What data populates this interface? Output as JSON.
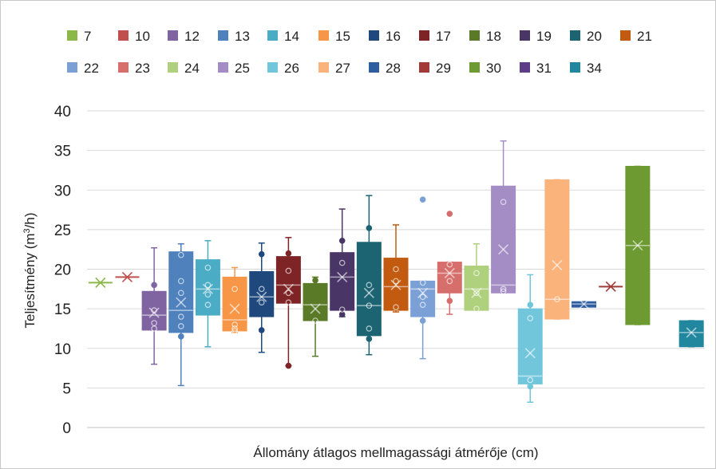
{
  "chart_data": {
    "type": "box",
    "xlabel": "Állomány átlagos mellmagassági átmérője (cm)",
    "ylabel": "Teljesítmény (m³/h)",
    "ylim": [
      0,
      40
    ],
    "yticks": [
      0,
      5,
      10,
      15,
      20,
      25,
      30,
      35,
      40
    ],
    "grid": true,
    "legend_position": "top",
    "series": [
      {
        "name": "7",
        "color": "#8cb84a",
        "min": 18.3,
        "q1": 18.3,
        "median": 18.3,
        "q3": 18.3,
        "max": 18.3,
        "mean": 18.3,
        "points": []
      },
      {
        "name": "10",
        "color": "#c0504d",
        "min": 19.0,
        "q1": 19.0,
        "median": 19.0,
        "q3": 19.0,
        "max": 19.0,
        "mean": 19.0,
        "points": []
      },
      {
        "name": "12",
        "color": "#8064a2",
        "min": 8.0,
        "q1": 12.3,
        "median": 14.2,
        "q3": 17.2,
        "max": 22.7,
        "mean": 14.5,
        "points": [
          18.0,
          12.5,
          13.2,
          14.8
        ]
      },
      {
        "name": "13",
        "color": "#4f81bd",
        "min": 5.3,
        "q1": 12.0,
        "median": 14.8,
        "q3": 22.2,
        "max": 23.2,
        "mean": 15.8,
        "points": [
          11.5,
          14.0,
          17.0,
          18.5,
          21.8,
          12.8
        ]
      },
      {
        "name": "14",
        "color": "#4bacc6",
        "min": 10.2,
        "q1": 14.2,
        "median": 17.5,
        "q3": 21.2,
        "max": 23.6,
        "mean": 17.5,
        "points": [
          15.5,
          18.0,
          20.2,
          16.8
        ]
      },
      {
        "name": "15",
        "color": "#f79646",
        "min": 12.0,
        "q1": 12.2,
        "median": 13.6,
        "q3": 19.0,
        "max": 20.2,
        "mean": 15.0,
        "points": [
          12.5,
          17.5,
          13.0,
          12.2
        ]
      },
      {
        "name": "16",
        "color": "#1f497d",
        "min": 9.5,
        "q1": 14.0,
        "median": 16.5,
        "q3": 19.7,
        "max": 23.3,
        "mean": 16.5,
        "points": [
          12.3,
          21.9,
          17.5,
          15.8
        ]
      },
      {
        "name": "17",
        "color": "#7f2426",
        "min": 7.8,
        "q1": 15.7,
        "median": 18.0,
        "q3": 21.6,
        "max": 24.0,
        "mean": 17.5,
        "points": [
          7.8,
          22.0,
          17.0,
          19.8,
          15.8
        ]
      },
      {
        "name": "18",
        "color": "#5a7a28",
        "min": 9.0,
        "q1": 13.5,
        "median": 15.5,
        "q3": 18.2,
        "max": 19.0,
        "mean": 15.0,
        "points": [
          18.6,
          13.5
        ]
      },
      {
        "name": "19",
        "color": "#4a3666",
        "min": 14.0,
        "q1": 14.8,
        "median": 19.0,
        "q3": 22.1,
        "max": 27.6,
        "mean": 19.0,
        "points": [
          23.6,
          20.8,
          14.3,
          14.9
        ]
      },
      {
        "name": "20",
        "color": "#1d6473",
        "min": 9.2,
        "q1": 11.6,
        "median": 15.4,
        "q3": 23.4,
        "max": 29.3,
        "mean": 17.0,
        "points": [
          25.2,
          11.2,
          18.0,
          15.4,
          12.5
        ]
      },
      {
        "name": "21",
        "color": "#c25a0f",
        "min": 14.6,
        "q1": 14.8,
        "median": 17.8,
        "q3": 21.4,
        "max": 25.6,
        "mean": 18.0,
        "points": [
          20.0,
          18.5,
          15.2
        ]
      },
      {
        "name": "22",
        "color": "#7ba0d6",
        "min": 8.7,
        "q1": 14.0,
        "median": 17.5,
        "q3": 18.5,
        "max": 18.5,
        "mean": 17.0,
        "points": [
          28.8,
          18.3,
          15.5,
          13.5,
          16.5
        ]
      },
      {
        "name": "23",
        "color": "#d66e6c",
        "min": 14.3,
        "q1": 17.0,
        "median": 19.5,
        "q3": 20.9,
        "max": 20.9,
        "mean": 19.5,
        "points": [
          27.0,
          20.6,
          18.5,
          16.0
        ]
      },
      {
        "name": "24",
        "color": "#afd07d",
        "min": 14.8,
        "q1": 14.8,
        "median": 17.5,
        "q3": 20.4,
        "max": 23.2,
        "mean": 17.0,
        "points": [
          19.5,
          15.0,
          17.0
        ]
      },
      {
        "name": "25",
        "color": "#a48cc4",
        "min": 17.0,
        "q1": 17.0,
        "median": 18.0,
        "q3": 30.5,
        "max": 36.2,
        "mean": 22.5,
        "points": [
          28.5,
          17.5,
          17.2
        ]
      },
      {
        "name": "26",
        "color": "#72c6db",
        "min": 3.2,
        "q1": 5.5,
        "median": 6.5,
        "q3": 15.0,
        "max": 19.3,
        "mean": 9.4,
        "points": [
          15.5,
          13.8,
          6.0,
          5.2
        ]
      },
      {
        "name": "27",
        "color": "#f9b37b",
        "min": 13.7,
        "q1": 13.7,
        "median": 16.2,
        "q3": 31.3,
        "max": 31.3,
        "mean": 20.5,
        "points": [
          16.2
        ]
      },
      {
        "name": "28",
        "color": "#2e5ea0",
        "min": 15.2,
        "q1": 15.2,
        "median": 15.6,
        "q3": 15.9,
        "max": 15.9,
        "mean": 15.6,
        "points": []
      },
      {
        "name": "29",
        "color": "#a23a38",
        "min": 17.8,
        "q1": 17.8,
        "median": 17.8,
        "q3": 17.8,
        "max": 17.8,
        "mean": 17.8,
        "points": []
      },
      {
        "name": "30",
        "color": "#6d9a31",
        "min": 13.0,
        "q1": 13.0,
        "median": 23.0,
        "q3": 33.0,
        "max": 33.0,
        "mean": 23.0,
        "points": []
      },
      {
        "name": "31",
        "color": "#5e3d87",
        "min": null,
        "q1": null,
        "median": null,
        "q3": null,
        "max": null,
        "mean": null,
        "points": []
      },
      {
        "name": "34",
        "color": "#20879e",
        "min": 10.2,
        "q1": 10.2,
        "median": 12.0,
        "q3": 13.5,
        "max": 13.5,
        "mean": 12.0,
        "points": []
      }
    ]
  }
}
